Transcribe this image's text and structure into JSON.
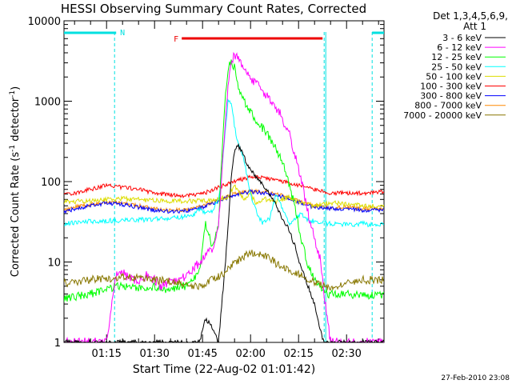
{
  "chart_data": {
    "type": "line",
    "title": "HESSI Observing Summary Count Rates, Corrected",
    "xlabel": "Start Time (22-Aug-02 01:01:42)",
    "ylabel": "Corrected Count Rate (s",
    "ylabel_sup1": "-1",
    "ylabel_mid": " detector",
    "ylabel_sup2": "-1",
    "ylabel_end": ")",
    "footer_date": "27-Feb-2010 23:08",
    "y_scale": "log",
    "ylim": [
      1,
      10000
    ],
    "xlim_minutes": [
      1.7,
      101.7
    ],
    "x_tick_labels": [
      "01:15",
      "01:30",
      "01:45",
      "02:00",
      "02:15",
      "02:30"
    ],
    "x_tick_minutes": [
      15,
      30,
      45,
      60,
      75,
      90
    ],
    "y_tick_labels": [
      "1",
      "10",
      "100",
      "1000",
      "10000"
    ],
    "y_tick_values": [
      1,
      10,
      100,
      1000,
      10000
    ],
    "legend": {
      "header_line1": "Det 1,3,4,5,6,9,",
      "header_line2": "Att 1",
      "placement": "right"
    },
    "annotations": {
      "night_label": "N",
      "flare_label": "F",
      "flare_minutes": [
        38.5,
        82.5
      ],
      "night_segments": [
        [
          1.7,
          18
        ],
        [
          98,
          101.7
        ]
      ],
      "night_boundaries": [
        17.5,
        83,
        98
      ]
    },
    "series": [
      {
        "name": "3 - 6 keV",
        "color": "#000000",
        "x": [
          1.7,
          44,
          46,
          48,
          50,
          51,
          52,
          53,
          54,
          55,
          56,
          58,
          60,
          62,
          64,
          66,
          68,
          70,
          72,
          74,
          76,
          78,
          80,
          81,
          82,
          83
        ],
        "y": [
          1,
          1,
          2,
          1.5,
          1,
          3,
          8,
          30,
          120,
          250,
          290,
          200,
          140,
          110,
          90,
          70,
          50,
          35,
          25,
          15,
          8,
          5,
          3,
          2,
          1.3,
          1
        ]
      },
      {
        "name": "6 - 12 keV",
        "color": "#ff00ff",
        "x": [
          1.7,
          15,
          18,
          20,
          22,
          25,
          28,
          30,
          32,
          35,
          38,
          40,
          42,
          44,
          46,
          48,
          50,
          51,
          52,
          53,
          54,
          55,
          56,
          57,
          58,
          60,
          62,
          64,
          66,
          68,
          70,
          72,
          74,
          76,
          78,
          80,
          82,
          83,
          84,
          85
        ],
        "y": [
          1,
          1,
          7,
          8,
          6,
          6,
          7,
          6,
          5,
          6,
          6,
          7,
          8,
          10,
          12,
          14,
          30,
          120,
          500,
          1500,
          3000,
          3700,
          3400,
          3000,
          2500,
          2000,
          1600,
          1300,
          1050,
          850,
          600,
          400,
          200,
          100,
          40,
          20,
          10,
          4,
          2,
          1
        ]
      },
      {
        "name": "12 - 25 keV",
        "color": "#00ff00",
        "x": [
          1.7,
          10,
          18,
          22,
          26,
          30,
          34,
          38,
          40,
          42,
          44,
          46,
          48,
          50,
          51,
          52,
          53,
          54,
          55,
          56,
          57,
          58,
          60,
          62,
          64,
          66,
          68,
          70,
          72,
          74,
          76,
          78,
          80,
          82,
          84,
          86,
          90,
          95,
          98
        ],
        "y": [
          3.5,
          4,
          5,
          5,
          4.5,
          5,
          4.5,
          5,
          5,
          6,
          8,
          30,
          15,
          30,
          200,
          1000,
          2600,
          3100,
          2600,
          1700,
          1200,
          1000,
          750,
          550,
          450,
          350,
          260,
          170,
          95,
          45,
          18,
          9,
          6,
          5,
          4,
          4,
          4,
          3.8,
          3.8
        ]
      },
      {
        "name": "25 - 50 keV",
        "color": "#00ffff",
        "x": [
          1.7,
          10,
          20,
          30,
          38,
          42,
          44,
          46,
          48,
          50,
          51,
          52,
          53,
          54,
          55,
          56,
          57,
          58,
          60,
          62,
          64,
          66,
          68,
          70,
          72,
          74,
          76,
          78,
          80,
          82,
          84,
          86,
          90,
          95,
          98,
          101.7
        ],
        "y": [
          30,
          32,
          33,
          34,
          36,
          38,
          45,
          40,
          42,
          60,
          130,
          400,
          1050,
          900,
          500,
          300,
          230,
          180,
          70,
          40,
          30,
          35,
          70,
          45,
          30,
          35,
          40,
          33,
          32,
          32,
          30,
          30,
          29,
          30,
          29,
          29
        ]
      },
      {
        "name": "50 - 100 keV",
        "color": "#dddd00",
        "x": [
          1.7,
          10,
          20,
          30,
          40,
          45,
          50,
          53,
          55,
          58,
          60,
          62,
          64,
          66,
          68,
          70,
          72,
          74,
          76,
          78,
          80,
          85,
          90,
          95,
          101.7
        ],
        "y": [
          56,
          58,
          62,
          58,
          57,
          58,
          60,
          65,
          90,
          60,
          70,
          52,
          62,
          58,
          56,
          60,
          65,
          58,
          55,
          52,
          50,
          55,
          52,
          50,
          50
        ]
      },
      {
        "name": "100 - 300 keV",
        "color": "#ff0000",
        "x": [
          1.7,
          5,
          10,
          15,
          20,
          25,
          30,
          35,
          40,
          45,
          50,
          55,
          60,
          65,
          70,
          75,
          80,
          85,
          90,
          95,
          101.7
        ],
        "y": [
          68,
          72,
          80,
          90,
          85,
          80,
          72,
          68,
          67,
          70,
          85,
          100,
          115,
          110,
          100,
          90,
          80,
          72,
          72,
          72,
          75
        ]
      },
      {
        "name": "300 - 800 keV",
        "color": "#0000ff",
        "x": [
          1.7,
          5,
          10,
          15,
          20,
          25,
          30,
          35,
          40,
          45,
          50,
          55,
          60,
          65,
          70,
          75,
          80,
          85,
          90,
          95,
          101.7
        ],
        "y": [
          42,
          46,
          50,
          54,
          52,
          48,
          44,
          42,
          43,
          48,
          58,
          68,
          75,
          72,
          65,
          55,
          48,
          46,
          46,
          44,
          45
        ]
      },
      {
        "name": "800 - 7000 keV",
        "color": "#ff8800",
        "x": [
          1.7,
          5,
          10,
          15,
          20,
          25,
          30,
          35,
          40,
          45,
          50,
          55,
          60,
          65,
          70,
          75,
          80,
          85,
          90,
          95,
          101.7
        ],
        "y": [
          44,
          48,
          52,
          56,
          54,
          50,
          46,
          44,
          45,
          50,
          60,
          70,
          77,
          74,
          67,
          57,
          50,
          48,
          48,
          46,
          47
        ]
      },
      {
        "name": "7000 - 20000 keV",
        "color": "#887700",
        "x": [
          1.7,
          10,
          20,
          30,
          38,
          42,
          45,
          48,
          51,
          54,
          57,
          60,
          63,
          66,
          69,
          72,
          75,
          78,
          81,
          84,
          87,
          90,
          95,
          101.7
        ],
        "y": [
          5.5,
          6,
          6.5,
          6,
          5.5,
          5,
          5,
          6,
          7,
          9,
          11,
          13,
          12.5,
          11,
          9,
          8,
          7,
          6,
          5.5,
          5,
          5,
          5.5,
          6,
          6
        ]
      }
    ]
  }
}
